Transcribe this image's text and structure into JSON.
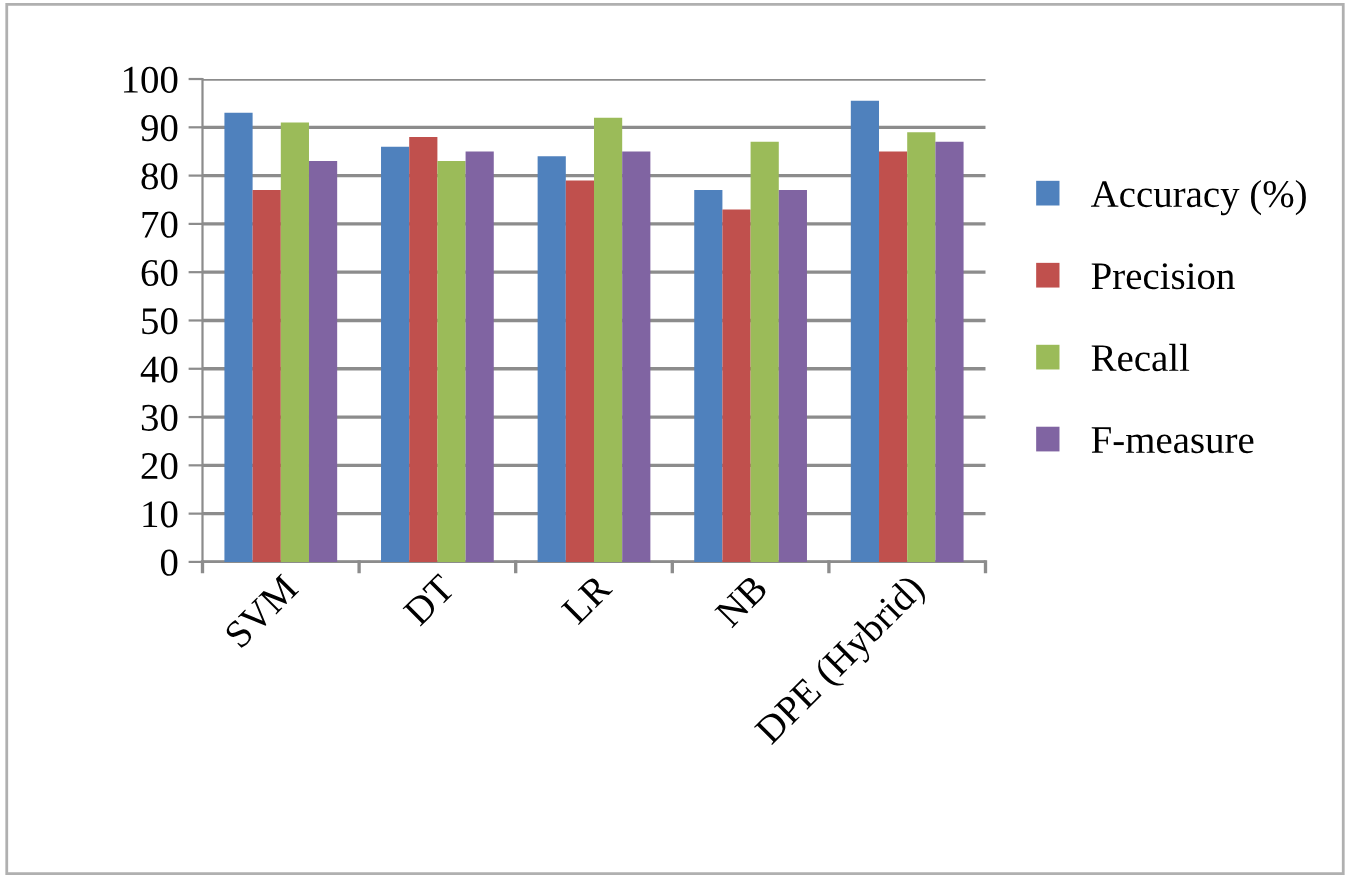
{
  "chart_data": {
    "type": "bar",
    "categories": [
      "SVM",
      "DT",
      "LR",
      "NB",
      "DPE (Hybrid)"
    ],
    "series": [
      {
        "name": "Accuracy (%)",
        "color": "#4f81bd",
        "values": [
          93,
          86,
          84,
          77,
          95.5
        ]
      },
      {
        "name": "Precision",
        "color": "#c0504d",
        "values": [
          77,
          88,
          79,
          73,
          85
        ]
      },
      {
        "name": "Recall",
        "color": "#9bbb59",
        "values": [
          91,
          83,
          92,
          87,
          89
        ]
      },
      {
        "name": "F-measure",
        "color": "#8064a2",
        "values": [
          83,
          85,
          85,
          77,
          87
        ]
      }
    ],
    "ylim": [
      0,
      100
    ],
    "yticks": [
      0,
      10,
      20,
      30,
      40,
      50,
      60,
      70,
      80,
      90,
      100
    ],
    "grid": "y",
    "legend": "right"
  }
}
